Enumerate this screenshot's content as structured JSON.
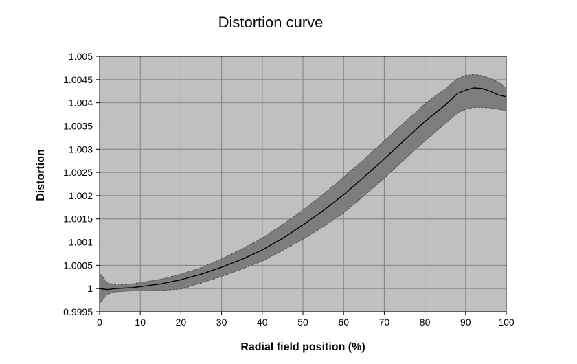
{
  "chart_data": {
    "type": "area",
    "title": "Distortion curve",
    "xlabel": "Radial field position (%)",
    "ylabel": "Distortion",
    "xlim": [
      0,
      100
    ],
    "ylim": [
      0.9995,
      1.005
    ],
    "x_ticks": [
      "0",
      "10",
      "20",
      "30",
      "40",
      "50",
      "60",
      "70",
      "80",
      "90",
      "100"
    ],
    "y_ticks": [
      "0.9995",
      "1",
      "1.0005",
      "1.001",
      "1.0015",
      "1.002",
      "1.0025",
      "1.003",
      "1.0035",
      "1.004",
      "1.0045",
      "1.005"
    ],
    "grid": true,
    "x": [
      0,
      2,
      4,
      6,
      8,
      10,
      15,
      20,
      25,
      30,
      35,
      40,
      45,
      50,
      55,
      60,
      65,
      70,
      75,
      80,
      85,
      88,
      90,
      92,
      94,
      96,
      98,
      100
    ],
    "series": [
      {
        "role": "center",
        "values": [
          1.0,
          0.99998,
          1.0,
          1.00001,
          1.00002,
          1.00004,
          1.0001,
          1.00019,
          1.00031,
          1.00046,
          1.00063,
          1.00083,
          1.00108,
          1.00137,
          1.00168,
          1.00202,
          1.0024,
          1.00279,
          1.0032,
          1.0036,
          1.00395,
          1.0042,
          1.00427,
          1.00432,
          1.00431,
          1.00425,
          1.00417,
          1.00413
        ]
      },
      {
        "role": "upper",
        "values": [
          1.00033,
          1.00012,
          1.00008,
          1.00009,
          1.0001,
          1.00013,
          1.0002,
          1.00031,
          1.00045,
          1.00064,
          1.00085,
          1.00109,
          1.00138,
          1.00169,
          1.00203,
          1.0024,
          1.00278,
          1.00318,
          1.00358,
          1.00398,
          1.0043,
          1.00452,
          1.00459,
          1.00461,
          1.00459,
          1.00453,
          1.00445,
          1.00432
        ]
      },
      {
        "role": "lower",
        "values": [
          0.99968,
          0.99988,
          0.99993,
          0.99994,
          0.99995,
          0.99995,
          0.99996,
          0.99999,
          1.00012,
          1.00026,
          1.00042,
          1.00059,
          1.00082,
          1.00106,
          1.00133,
          1.00163,
          1.00199,
          1.00238,
          1.00278,
          1.00318,
          1.00355,
          1.00378,
          1.00386,
          1.0039,
          1.0039,
          1.00389,
          1.00386,
          1.00383
        ]
      }
    ]
  },
  "colors": {
    "plot_background": "#c0c0c0",
    "band_fill": "#7d7d7d",
    "center_line": "#000000",
    "gridline": "#808080",
    "band_edge": "#333333"
  }
}
